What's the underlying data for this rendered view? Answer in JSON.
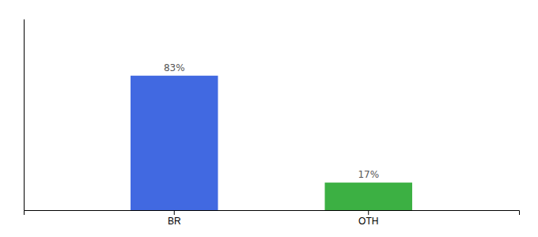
{
  "chart_data": {
    "type": "bar",
    "categories": [
      "BR",
      "OTH"
    ],
    "values": [
      83,
      17
    ],
    "value_labels": [
      "83%",
      "17%"
    ],
    "colors": [
      "#4169e1",
      "#3cb043"
    ],
    "ylim": [
      0,
      118
    ],
    "data_labels": true,
    "tick_labels": "x",
    "grid": false
  }
}
